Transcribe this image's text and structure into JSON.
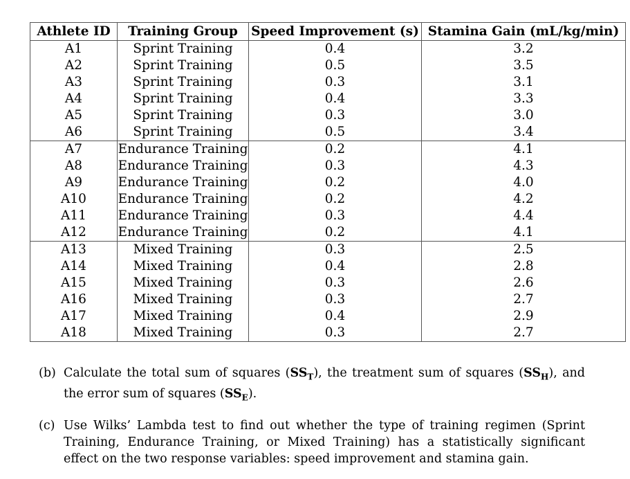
{
  "table": {
    "headers": [
      "Athlete ID",
      "Training Group",
      "Speed Improvement (s)",
      "Stamina Gain (mL/kg/min)"
    ],
    "rows": [
      [
        "A1",
        "Sprint Training",
        "0.4",
        "3.2"
      ],
      [
        "A2",
        "Sprint Training",
        "0.5",
        "3.5"
      ],
      [
        "A3",
        "Sprint Training",
        "0.3",
        "3.1"
      ],
      [
        "A4",
        "Sprint Training",
        "0.4",
        "3.3"
      ],
      [
        "A5",
        "Sprint Training",
        "0.3",
        "3.0"
      ],
      [
        "A6",
        "Sprint Training",
        "0.5",
        "3.4"
      ],
      [
        "A7",
        "Endurance Training",
        "0.2",
        "4.1"
      ],
      [
        "A8",
        "Endurance Training",
        "0.3",
        "4.3"
      ],
      [
        "A9",
        "Endurance Training",
        "0.2",
        "4.0"
      ],
      [
        "A10",
        "Endurance Training",
        "0.2",
        "4.2"
      ],
      [
        "A11",
        "Endurance Training",
        "0.3",
        "4.4"
      ],
      [
        "A12",
        "Endurance Training",
        "0.2",
        "4.1"
      ],
      [
        "A13",
        "Mixed Training",
        "0.3",
        "2.5"
      ],
      [
        "A14",
        "Mixed Training",
        "0.4",
        "2.8"
      ],
      [
        "A15",
        "Mixed Training",
        "0.3",
        "2.6"
      ],
      [
        "A16",
        "Mixed Training",
        "0.3",
        "2.7"
      ],
      [
        "A17",
        "Mixed Training",
        "0.4",
        "2.9"
      ],
      [
        "A18",
        "Mixed Training",
        "0.3",
        "2.7"
      ]
    ]
  },
  "questions": {
    "b": {
      "label": "(b)",
      "part1": "Calculate the total sum of squares (",
      "sym1": "SS",
      "sub1": "T",
      "part2": "), the treatment sum of squares (",
      "sym2": "SS",
      "sub2": "H",
      "part3": "), and the error sum of squares (",
      "sym3": "SS",
      "sub3": "E",
      "part4": ")."
    },
    "c": {
      "label": "(c)",
      "text": "Use Wilks’ Lambda test to find out whether the type of training regimen (Sprint Training, Endurance Training, or Mixed Training) has a statistically significant effect on the two response variables: speed improvement and stamina gain."
    }
  }
}
